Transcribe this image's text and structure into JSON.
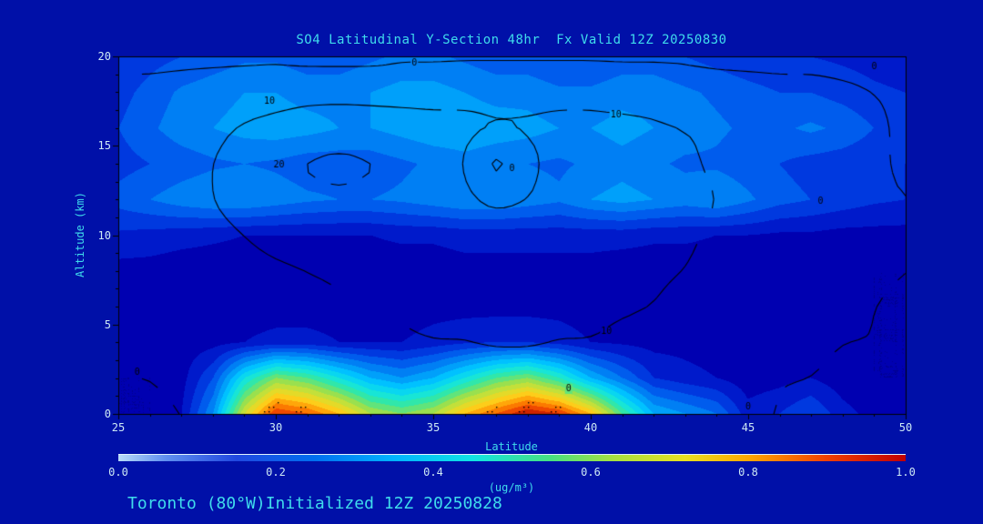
{
  "title": "SO4 Latitudinal Y-Section 48hr  Fx Valid 12Z 20250830",
  "caption": "Toronto (80°W)Initialized 12Z 20250828",
  "axes": {
    "x": {
      "label": "Latitude",
      "min": 25,
      "max": 50,
      "ticks": [
        25,
        30,
        35,
        40,
        45,
        50
      ],
      "minor_step": 1
    },
    "y": {
      "label": "Altitude (km)",
      "min": 0,
      "max": 20,
      "ticks": [
        0,
        5,
        10,
        15,
        20
      ],
      "minor_step": 1
    }
  },
  "colorbar": {
    "label": "(ug/m³)",
    "ticks": [
      "0.0",
      "0.2",
      "0.4",
      "0.6",
      "0.8",
      "1.0"
    ],
    "stops": [
      [
        0,
        "#B8DCF8"
      ],
      [
        0.06,
        "#6090F0"
      ],
      [
        0.15,
        "#2048E0"
      ],
      [
        0.25,
        "#0070F0"
      ],
      [
        0.35,
        "#00B4FF"
      ],
      [
        0.45,
        "#10E4E4"
      ],
      [
        0.55,
        "#48E080"
      ],
      [
        0.63,
        "#A8E040"
      ],
      [
        0.72,
        "#E8E020"
      ],
      [
        0.8,
        "#FFA800"
      ],
      [
        0.9,
        "#F04000"
      ],
      [
        1,
        "#C00000"
      ]
    ]
  },
  "colors": {
    "background": "#0010A8",
    "title_text": "#3FDCEC",
    "tick_text": "#CDE9F5",
    "contour_line": "#000000",
    "frame": "#000000"
  },
  "chart_data": {
    "type": "heatmap",
    "title": "SO4 Latitudinal Y-Section 48hr  Fx Valid 12Z 20250830",
    "xlabel": "Latitude",
    "ylabel": "Altitude (km)",
    "field_units": "ug/m3",
    "xlim": [
      25,
      50
    ],
    "ylim": [
      0,
      20
    ],
    "value_range": [
      0,
      1
    ],
    "x_lat": [
      25,
      26,
      27,
      28,
      29,
      30,
      31,
      32,
      33,
      34,
      35,
      36,
      37,
      38,
      39,
      40,
      41,
      42,
      43,
      44,
      45,
      46,
      47,
      48,
      49,
      50
    ],
    "y_alt_km": [
      0,
      2,
      4,
      6,
      8,
      10,
      12,
      14,
      16,
      18,
      20
    ],
    "grid": [
      [
        0.05,
        0.05,
        0.1,
        0.3,
        0.7,
        0.95,
        0.9,
        0.8,
        0.65,
        0.6,
        0.65,
        0.8,
        0.9,
        1.0,
        0.95,
        0.8,
        0.55,
        0.35,
        0.3,
        0.25,
        0.12,
        0.15,
        0.2,
        0.12,
        0.08,
        0.05
      ],
      [
        0.05,
        0.05,
        0.08,
        0.2,
        0.45,
        0.6,
        0.55,
        0.45,
        0.35,
        0.3,
        0.35,
        0.45,
        0.55,
        0.6,
        0.5,
        0.35,
        0.25,
        0.15,
        0.12,
        0.1,
        0.07,
        0.08,
        0.1,
        0.07,
        0.05,
        0.05
      ],
      [
        0.06,
        0.06,
        0.07,
        0.08,
        0.1,
        0.12,
        0.12,
        0.1,
        0.1,
        0.1,
        0.12,
        0.14,
        0.15,
        0.15,
        0.13,
        0.1,
        0.09,
        0.08,
        0.08,
        0.07,
        0.06,
        0.06,
        0.07,
        0.06,
        0.05,
        0.05
      ],
      [
        0.06,
        0.06,
        0.06,
        0.06,
        0.07,
        0.07,
        0.07,
        0.07,
        0.07,
        0.07,
        0.08,
        0.08,
        0.08,
        0.08,
        0.08,
        0.07,
        0.07,
        0.07,
        0.06,
        0.06,
        0.06,
        0.06,
        0.06,
        0.05,
        0.05,
        0.05
      ],
      [
        0.08,
        0.08,
        0.07,
        0.07,
        0.07,
        0.07,
        0.07,
        0.07,
        0.07,
        0.07,
        0.07,
        0.08,
        0.08,
        0.08,
        0.08,
        0.08,
        0.07,
        0.07,
        0.07,
        0.07,
        0.06,
        0.06,
        0.06,
        0.06,
        0.05,
        0.05
      ],
      [
        0.14,
        0.13,
        0.12,
        0.11,
        0.1,
        0.1,
        0.1,
        0.1,
        0.1,
        0.11,
        0.11,
        0.12,
        0.12,
        0.12,
        0.12,
        0.12,
        0.12,
        0.11,
        0.11,
        0.1,
        0.1,
        0.09,
        0.09,
        0.08,
        0.08,
        0.08
      ],
      [
        0.22,
        0.25,
        0.28,
        0.3,
        0.3,
        0.28,
        0.26,
        0.25,
        0.25,
        0.26,
        0.28,
        0.3,
        0.3,
        0.28,
        0.26,
        0.3,
        0.32,
        0.3,
        0.28,
        0.3,
        0.26,
        0.22,
        0.2,
        0.18,
        0.16,
        0.15
      ],
      [
        0.18,
        0.2,
        0.22,
        0.24,
        0.25,
        0.24,
        0.22,
        0.22,
        0.22,
        0.24,
        0.26,
        0.28,
        0.26,
        0.25,
        0.24,
        0.26,
        0.28,
        0.26,
        0.24,
        0.24,
        0.22,
        0.2,
        0.18,
        0.17,
        0.16,
        0.15
      ],
      [
        0.2,
        0.24,
        0.28,
        0.3,
        0.32,
        0.33,
        0.32,
        0.3,
        0.3,
        0.32,
        0.34,
        0.34,
        0.33,
        0.32,
        0.3,
        0.3,
        0.32,
        0.3,
        0.28,
        0.26,
        0.24,
        0.24,
        0.26,
        0.24,
        0.2,
        0.18
      ],
      [
        0.18,
        0.22,
        0.26,
        0.28,
        0.3,
        0.3,
        0.28,
        0.28,
        0.3,
        0.32,
        0.32,
        0.3,
        0.28,
        0.28,
        0.26,
        0.26,
        0.28,
        0.28,
        0.26,
        0.24,
        0.22,
        0.2,
        0.2,
        0.18,
        0.16,
        0.15
      ],
      [
        0.15,
        0.18,
        0.2,
        0.22,
        0.24,
        0.24,
        0.22,
        0.22,
        0.24,
        0.26,
        0.26,
        0.24,
        0.22,
        0.22,
        0.2,
        0.2,
        0.22,
        0.22,
        0.2,
        0.18,
        0.16,
        0.15,
        0.15,
        0.14,
        0.13,
        0.12
      ]
    ],
    "colormap": [
      [
        0,
        "#000080"
      ],
      [
        0.08,
        "#0000B4"
      ],
      [
        0.15,
        "#0028D8"
      ],
      [
        0.22,
        "#0058EC"
      ],
      [
        0.3,
        "#0090F8"
      ],
      [
        0.38,
        "#00C4FF"
      ],
      [
        0.46,
        "#10E4E4"
      ],
      [
        0.54,
        "#38E89C"
      ],
      [
        0.62,
        "#96E050"
      ],
      [
        0.7,
        "#D8E030"
      ],
      [
        0.78,
        "#FFCC18"
      ],
      [
        0.86,
        "#FF8800"
      ],
      [
        0.93,
        "#EE4400"
      ],
      [
        1,
        "#BB1100"
      ]
    ],
    "contour_overlay": {
      "levels": [
        0,
        10,
        20
      ],
      "grid": [
        [
          -1,
          -1,
          0,
          0,
          1,
          1,
          2,
          2,
          2,
          3,
          3,
          3,
          3,
          3,
          3,
          2,
          2,
          2,
          1,
          1,
          0,
          0,
          -1,
          -1,
          -1,
          -1
        ],
        [
          0,
          0,
          1,
          1,
          2,
          3,
          3,
          4,
          4,
          4,
          5,
          5,
          5,
          5,
          4,
          4,
          3,
          3,
          2,
          2,
          1,
          0,
          0,
          -1,
          -1,
          -1
        ],
        [
          1,
          1,
          2,
          3,
          4,
          5,
          6,
          7,
          8,
          9,
          10,
          10,
          11,
          11,
          10,
          10,
          8,
          7,
          5,
          4,
          3,
          2,
          1,
          0,
          0,
          -1
        ],
        [
          2,
          2,
          3,
          4,
          6,
          7,
          8,
          9,
          10,
          11,
          12,
          12,
          13,
          13,
          12,
          12,
          11,
          10,
          8,
          7,
          5,
          4,
          2,
          1,
          0,
          -1
        ],
        [
          3,
          3,
          4,
          6,
          8,
          9,
          10,
          11,
          12,
          13,
          13,
          14,
          14,
          14,
          13,
          13,
          12,
          11,
          10,
          8,
          6,
          5,
          3,
          2,
          1,
          0
        ],
        [
          4,
          4,
          6,
          8,
          10,
          12,
          13,
          14,
          14,
          14,
          14,
          14,
          15,
          15,
          14,
          14,
          13,
          12,
          11,
          9,
          7,
          5,
          4,
          2,
          1,
          0
        ],
        [
          4,
          5,
          7,
          10,
          13,
          16,
          18,
          19,
          18,
          16,
          14,
          12,
          8,
          10,
          13,
          14,
          14,
          13,
          12,
          10,
          8,
          6,
          4,
          2,
          1,
          0
        ],
        [
          4,
          5,
          7,
          10,
          14,
          18,
          21,
          22,
          21,
          18,
          15,
          10,
          -6,
          8,
          13,
          14,
          13,
          12,
          11,
          9,
          7,
          5,
          3,
          2,
          1,
          -1
        ],
        [
          3,
          4,
          6,
          8,
          11,
          13,
          15,
          16,
          15,
          14,
          13,
          12,
          11,
          11,
          12,
          12,
          12,
          11,
          10,
          9,
          7,
          5,
          3,
          2,
          1,
          -1
        ],
        [
          1,
          2,
          3,
          4,
          5,
          6,
          7,
          7,
          7,
          7,
          7,
          8,
          8,
          8,
          8,
          8,
          7,
          7,
          6,
          5,
          4,
          3,
          2,
          1,
          0,
          -1
        ],
        [
          -1,
          -2,
          -2,
          -2,
          -2,
          -2,
          -3,
          -3,
          -3,
          -2,
          -2,
          -2,
          -2,
          -2,
          -2,
          -2,
          -2,
          -2,
          -2,
          -3,
          -3,
          -3,
          -2,
          -2,
          -2,
          -3
        ]
      ]
    },
    "contour_labels": [
      {
        "text": "0",
        "lat": 34.4,
        "alt": 19.6
      },
      {
        "text": "0",
        "lat": 49.0,
        "alt": 19.4
      },
      {
        "text": "10",
        "lat": 29.8,
        "alt": 17.5
      },
      {
        "text": "10",
        "lat": 40.8,
        "alt": 16.7
      },
      {
        "text": "20",
        "lat": 30.1,
        "alt": 13.9
      },
      {
        "text": "0",
        "lat": 37.5,
        "alt": 13.7
      },
      {
        "text": "0",
        "lat": 47.3,
        "alt": 11.9
      },
      {
        "text": "10",
        "lat": 40.5,
        "alt": 4.6
      },
      {
        "text": "0",
        "lat": 39.3,
        "alt": 1.4
      },
      {
        "text": "0",
        "lat": 45.0,
        "alt": 0.4
      },
      {
        "text": "0",
        "lat": 25.6,
        "alt": 2.3
      }
    ]
  }
}
